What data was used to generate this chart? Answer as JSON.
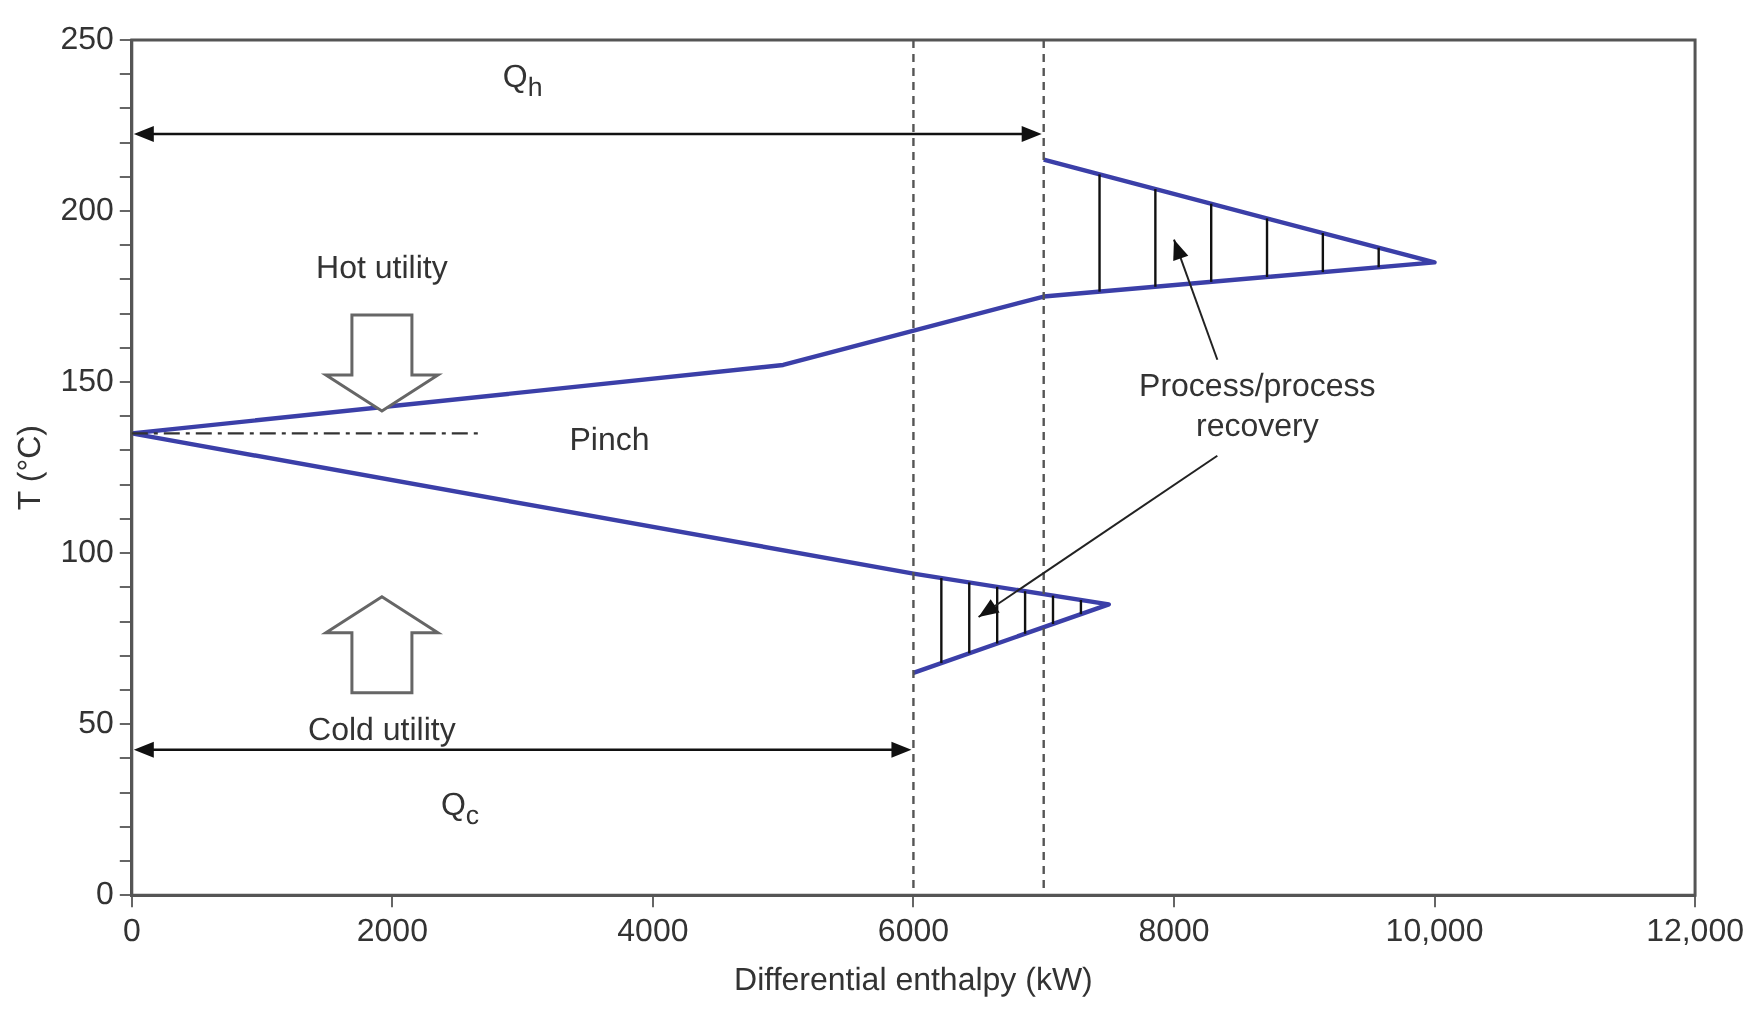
{
  "chart_data": {
    "type": "line",
    "xlabel": "Differential enthalpy (kW)",
    "ylabel": "T (°C)",
    "x": [
      7000,
      10000,
      7000,
      5000,
      0,
      6000,
      7500,
      6000
    ],
    "series": [
      {
        "color": "#3b3fa8",
        "values": [
          215,
          185,
          175,
          155,
          135,
          94,
          85,
          65
        ]
      }
    ],
    "xlim": [
      0,
      12000
    ],
    "ylim": [
      0,
      250
    ],
    "xticks": [
      0,
      2000,
      4000,
      6000,
      8000,
      {
        "value": 10000,
        "label": "10,000"
      },
      {
        "value": 12000,
        "label": "12,000"
      }
    ],
    "yticks": [
      0,
      {
        "value": 10,
        "label": null
      },
      {
        "value": 20,
        "label": null
      },
      {
        "value": 30,
        "label": null
      },
      {
        "value": 40,
        "label": null
      },
      50,
      {
        "value": 60,
        "label": null
      },
      {
        "value": 70,
        "label": null
      },
      {
        "value": 80,
        "label": null
      },
      {
        "value": 90,
        "label": null
      },
      100,
      {
        "value": 110,
        "label": null
      },
      {
        "value": 120,
        "label": null
      },
      {
        "value": 130,
        "label": null
      },
      {
        "value": 140,
        "label": null
      },
      150,
      {
        "value": 160,
        "label": null
      },
      {
        "value": 170,
        "label": null
      },
      {
        "value": 180,
        "label": null
      },
      {
        "value": 190,
        "label": null
      },
      200,
      {
        "value": 210,
        "label": null
      },
      {
        "value": 220,
        "label": null
      },
      {
        "value": 230,
        "label": null
      },
      {
        "value": 240,
        "label": null
      },
      250
    ],
    "ref_lines": [
      {
        "axis": "x",
        "value": 7000,
        "line_style": "dashed",
        "color": "#555555"
      },
      {
        "axis": "x",
        "value": 6000,
        "line_style": "dashed",
        "color": "#555555"
      },
      {
        "axis": "y",
        "value": 135,
        "label": "Pinch",
        "line_style": "dashdot",
        "color": "#333333"
      }
    ],
    "annotations": [
      "Q$_{h}$",
      "Q$_{c}$",
      "Hot utility",
      "Cold utility",
      "Process/process recovery"
    ],
    "grid": false,
    "legend": false,
    "marker": "none",
    "line_style": "solid"
  }
}
